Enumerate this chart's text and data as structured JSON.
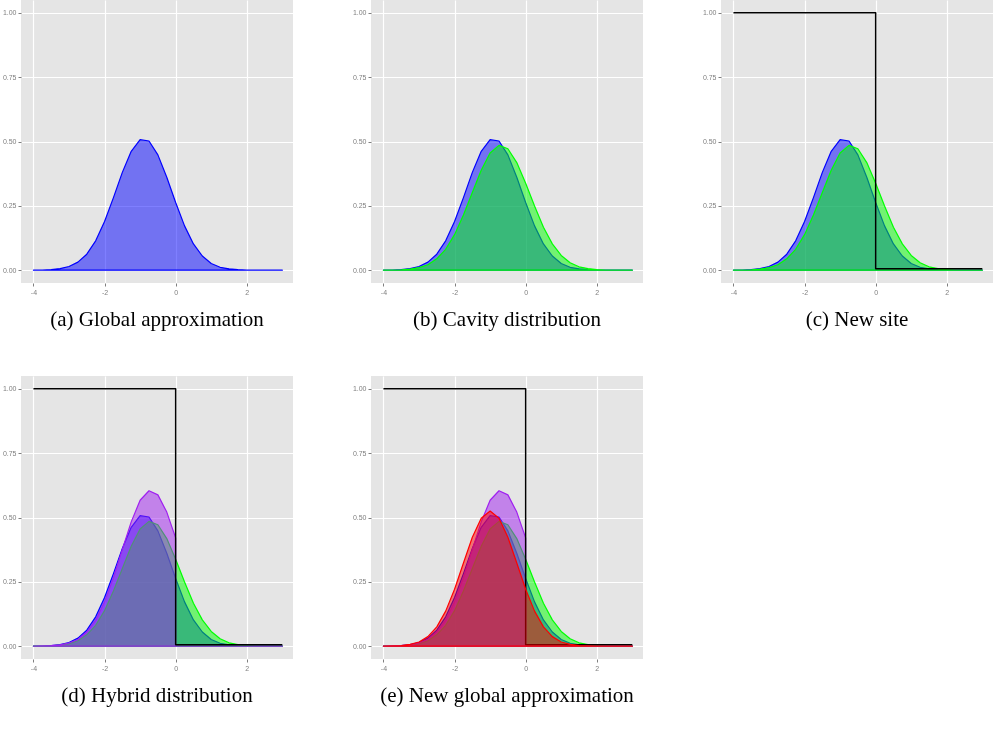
{
  "chart_data": [
    {
      "type": "area",
      "title": "(a) Global approximation",
      "xlim": [
        -4.35,
        3.3
      ],
      "ylim": [
        -0.05,
        1.05
      ],
      "xticks": [
        -4,
        -2,
        0,
        2
      ],
      "yticks": [
        {
          "value": 0,
          "label": "0.00"
        },
        {
          "value": 0.25,
          "label": "0.25"
        },
        {
          "value": 0.5,
          "label": "0.50"
        },
        {
          "value": 0.75,
          "label": "0.75"
        },
        {
          "value": 1,
          "label": "1.00"
        }
      ],
      "grid": true,
      "x": [
        -4,
        -3.75,
        -3.5,
        -3.25,
        -3,
        -2.75,
        -2.5,
        -2.25,
        -2,
        -1.75,
        -1.5,
        -1.25,
        -1,
        -0.75,
        -0.5,
        -0.25,
        0,
        0.25,
        0.5,
        0.75,
        1,
        1.25,
        1.5,
        1.75,
        2,
        2.25,
        2.5,
        2.75,
        3
      ],
      "series": [
        {
          "color": "#0000ff",
          "values": [
            0,
            0,
            0.002,
            0.006,
            0.014,
            0.031,
            0.062,
            0.114,
            0.189,
            0.282,
            0.38,
            0.462,
            0.507,
            0.502,
            0.448,
            0.361,
            0.263,
            0.172,
            0.102,
            0.055,
            0.026,
            0.011,
            0.005,
            0.002,
            0,
            0,
            0,
            0,
            0
          ]
        }
      ]
    },
    {
      "type": "area",
      "title": "(b) Cavity distribution",
      "xlim": [
        -4.35,
        3.3
      ],
      "ylim": [
        -0.05,
        1.05
      ],
      "xticks": [
        -4,
        -2,
        0,
        2
      ],
      "yticks": [
        {
          "value": 0,
          "label": "0.00"
        },
        {
          "value": 0.25,
          "label": "0.25"
        },
        {
          "value": 0.5,
          "label": "0.50"
        },
        {
          "value": 0.75,
          "label": "0.75"
        },
        {
          "value": 1,
          "label": "1.00"
        }
      ],
      "grid": true,
      "x": [
        -4,
        -3.75,
        -3.5,
        -3.25,
        -3,
        -2.75,
        -2.5,
        -2.25,
        -2,
        -1.75,
        -1.5,
        -1.25,
        -1,
        -0.75,
        -0.5,
        -0.25,
        0,
        0.25,
        0.5,
        0.75,
        1,
        1.25,
        1.5,
        1.75,
        2,
        2.25,
        2.5,
        2.75,
        3
      ],
      "series": [
        {
          "color": "#0000ff",
          "values": [
            0,
            0,
            0.002,
            0.006,
            0.014,
            0.031,
            0.062,
            0.114,
            0.189,
            0.282,
            0.38,
            0.462,
            0.507,
            0.502,
            0.448,
            0.361,
            0.263,
            0.172,
            0.102,
            0.055,
            0.026,
            0.011,
            0.005,
            0.002,
            0,
            0,
            0,
            0,
            0
          ]
        },
        {
          "color": "#00ff00",
          "values": [
            0,
            0,
            0.001,
            0.004,
            0.01,
            0.021,
            0.044,
            0.081,
            0.138,
            0.214,
            0.302,
            0.388,
            0.455,
            0.485,
            0.472,
            0.418,
            0.338,
            0.249,
            0.167,
            0.102,
            0.057,
            0.029,
            0.013,
            0.006,
            0.002,
            0,
            0,
            0,
            0
          ]
        }
      ]
    },
    {
      "type": "area",
      "title": "(c) New site",
      "xlim": [
        -4.35,
        3.3
      ],
      "ylim": [
        -0.05,
        1.05
      ],
      "xticks": [
        -4,
        -2,
        0,
        2
      ],
      "yticks": [
        {
          "value": 0,
          "label": "0.00"
        },
        {
          "value": 0.25,
          "label": "0.25"
        },
        {
          "value": 0.5,
          "label": "0.50"
        },
        {
          "value": 0.75,
          "label": "0.75"
        },
        {
          "value": 1,
          "label": "1.00"
        }
      ],
      "grid": true,
      "x": [
        -4,
        -3.75,
        -3.5,
        -3.25,
        -3,
        -2.75,
        -2.5,
        -2.25,
        -2,
        -1.75,
        -1.5,
        -1.25,
        -1,
        -0.75,
        -0.5,
        -0.25,
        0,
        0.25,
        0.5,
        0.75,
        1,
        1.25,
        1.5,
        1.75,
        2,
        2.25,
        2.5,
        2.75,
        3
      ],
      "series": [
        {
          "color": "#0000ff",
          "values": [
            0,
            0,
            0.002,
            0.006,
            0.014,
            0.031,
            0.062,
            0.114,
            0.189,
            0.282,
            0.38,
            0.462,
            0.507,
            0.502,
            0.448,
            0.361,
            0.263,
            0.172,
            0.102,
            0.055,
            0.026,
            0.011,
            0.005,
            0.002,
            0,
            0,
            0,
            0,
            0
          ]
        },
        {
          "color": "#00ff00",
          "values": [
            0,
            0,
            0.001,
            0.004,
            0.01,
            0.021,
            0.044,
            0.081,
            0.138,
            0.214,
            0.302,
            0.388,
            0.455,
            0.485,
            0.472,
            0.418,
            0.338,
            0.249,
            0.167,
            0.102,
            0.057,
            0.029,
            0.013,
            0.006,
            0.002,
            0,
            0,
            0,
            0
          ]
        },
        {
          "type": "line",
          "color": "#000000",
          "x": [
            -4,
            0,
            0,
            3
          ],
          "values": [
            1,
            1,
            0.005,
            0.005
          ]
        }
      ]
    },
    {
      "type": "area",
      "title": "(d) Hybrid distribution",
      "xlim": [
        -4.35,
        3.3
      ],
      "ylim": [
        -0.05,
        1.05
      ],
      "xticks": [
        -4,
        -2,
        0,
        2
      ],
      "yticks": [
        {
          "value": 0,
          "label": "0.00"
        },
        {
          "value": 0.25,
          "label": "0.25"
        },
        {
          "value": 0.5,
          "label": "0.50"
        },
        {
          "value": 0.75,
          "label": "0.75"
        },
        {
          "value": 1,
          "label": "1.00"
        }
      ],
      "grid": true,
      "x": [
        -4,
        -3.75,
        -3.5,
        -3.25,
        -3,
        -2.75,
        -2.5,
        -2.25,
        -2,
        -1.75,
        -1.5,
        -1.25,
        -1,
        -0.75,
        -0.5,
        -0.25,
        0,
        0.25,
        0.5,
        0.75,
        1,
        1.25,
        1.5,
        1.75,
        2,
        2.25,
        2.5,
        2.75,
        3
      ],
      "series": [
        {
          "color": "#0000ff",
          "values": [
            0,
            0,
            0.002,
            0.006,
            0.014,
            0.031,
            0.062,
            0.114,
            0.189,
            0.282,
            0.38,
            0.462,
            0.507,
            0.502,
            0.448,
            0.361,
            0.263,
            0.172,
            0.102,
            0.055,
            0.026,
            0.011,
            0.005,
            0.002,
            0,
            0,
            0,
            0,
            0
          ]
        },
        {
          "color": "#00ff00",
          "values": [
            0,
            0,
            0.001,
            0.004,
            0.01,
            0.021,
            0.044,
            0.081,
            0.138,
            0.214,
            0.302,
            0.388,
            0.455,
            0.485,
            0.472,
            0.418,
            0.338,
            0.249,
            0.167,
            0.102,
            0.057,
            0.029,
            0.013,
            0.006,
            0.002,
            0,
            0,
            0,
            0
          ]
        },
        {
          "color": "#a020f0",
          "x": [
            -4,
            -3.75,
            -3.5,
            -3.25,
            -3,
            -2.75,
            -2.5,
            -2.25,
            -2,
            -1.75,
            -1.5,
            -1.25,
            -1,
            -0.75,
            -0.5,
            -0.25,
            0,
            0,
            3
          ],
          "values": [
            0,
            0.001,
            0.002,
            0.005,
            0.012,
            0.026,
            0.055,
            0.101,
            0.172,
            0.266,
            0.376,
            0.483,
            0.567,
            0.604,
            0.588,
            0.521,
            0.421,
            0,
            0
          ]
        },
        {
          "type": "line",
          "color": "#000000",
          "x": [
            -4,
            0,
            0,
            3
          ],
          "values": [
            1,
            1,
            0.005,
            0.005
          ]
        }
      ]
    },
    {
      "type": "area",
      "title": "(e) New global approximation",
      "xlim": [
        -4.35,
        3.3
      ],
      "ylim": [
        -0.05,
        1.05
      ],
      "xticks": [
        -4,
        -2,
        0,
        2
      ],
      "yticks": [
        {
          "value": 0,
          "label": "0.00"
        },
        {
          "value": 0.25,
          "label": "0.25"
        },
        {
          "value": 0.5,
          "label": "0.50"
        },
        {
          "value": 0.75,
          "label": "0.75"
        },
        {
          "value": 1,
          "label": "1.00"
        }
      ],
      "grid": true,
      "x": [
        -4,
        -3.75,
        -3.5,
        -3.25,
        -3,
        -2.75,
        -2.5,
        -2.25,
        -2,
        -1.75,
        -1.5,
        -1.25,
        -1,
        -0.75,
        -0.5,
        -0.25,
        0,
        0.25,
        0.5,
        0.75,
        1,
        1.25,
        1.5,
        1.75,
        2,
        2.25,
        2.5,
        2.75,
        3
      ],
      "series": [
        {
          "color": "#0000ff",
          "values": [
            0,
            0,
            0.002,
            0.006,
            0.014,
            0.031,
            0.062,
            0.114,
            0.189,
            0.282,
            0.38,
            0.462,
            0.507,
            0.502,
            0.448,
            0.361,
            0.263,
            0.172,
            0.102,
            0.055,
            0.026,
            0.011,
            0.005,
            0.002,
            0,
            0,
            0,
            0,
            0
          ]
        },
        {
          "color": "#00ff00",
          "values": [
            0,
            0,
            0.001,
            0.004,
            0.01,
            0.021,
            0.044,
            0.081,
            0.138,
            0.214,
            0.302,
            0.388,
            0.455,
            0.485,
            0.472,
            0.418,
            0.338,
            0.249,
            0.167,
            0.102,
            0.057,
            0.029,
            0.013,
            0.006,
            0.002,
            0,
            0,
            0,
            0
          ]
        },
        {
          "color": "#a020f0",
          "x": [
            -4,
            -3.75,
            -3.5,
            -3.25,
            -3,
            -2.75,
            -2.5,
            -2.25,
            -2,
            -1.75,
            -1.5,
            -1.25,
            -1,
            -0.75,
            -0.5,
            -0.25,
            0,
            0,
            3
          ],
          "values": [
            0,
            0.001,
            0.002,
            0.005,
            0.012,
            0.026,
            0.055,
            0.101,
            0.172,
            0.266,
            0.376,
            0.483,
            0.567,
            0.604,
            0.588,
            0.521,
            0.421,
            0,
            0
          ]
        },
        {
          "type": "line",
          "color": "#000000",
          "x": [
            -4,
            0,
            0,
            3
          ],
          "values": [
            1,
            1,
            0.005,
            0.005
          ]
        },
        {
          "color": "#ff0000",
          "values": [
            0,
            0.001,
            0.002,
            0.007,
            0.016,
            0.037,
            0.075,
            0.136,
            0.221,
            0.323,
            0.423,
            0.497,
            0.525,
            0.497,
            0.423,
            0.323,
            0.221,
            0.136,
            0.075,
            0.037,
            0.016,
            0.007,
            0.002,
            0.001,
            0,
            0,
            0,
            0,
            0
          ]
        }
      ]
    }
  ]
}
